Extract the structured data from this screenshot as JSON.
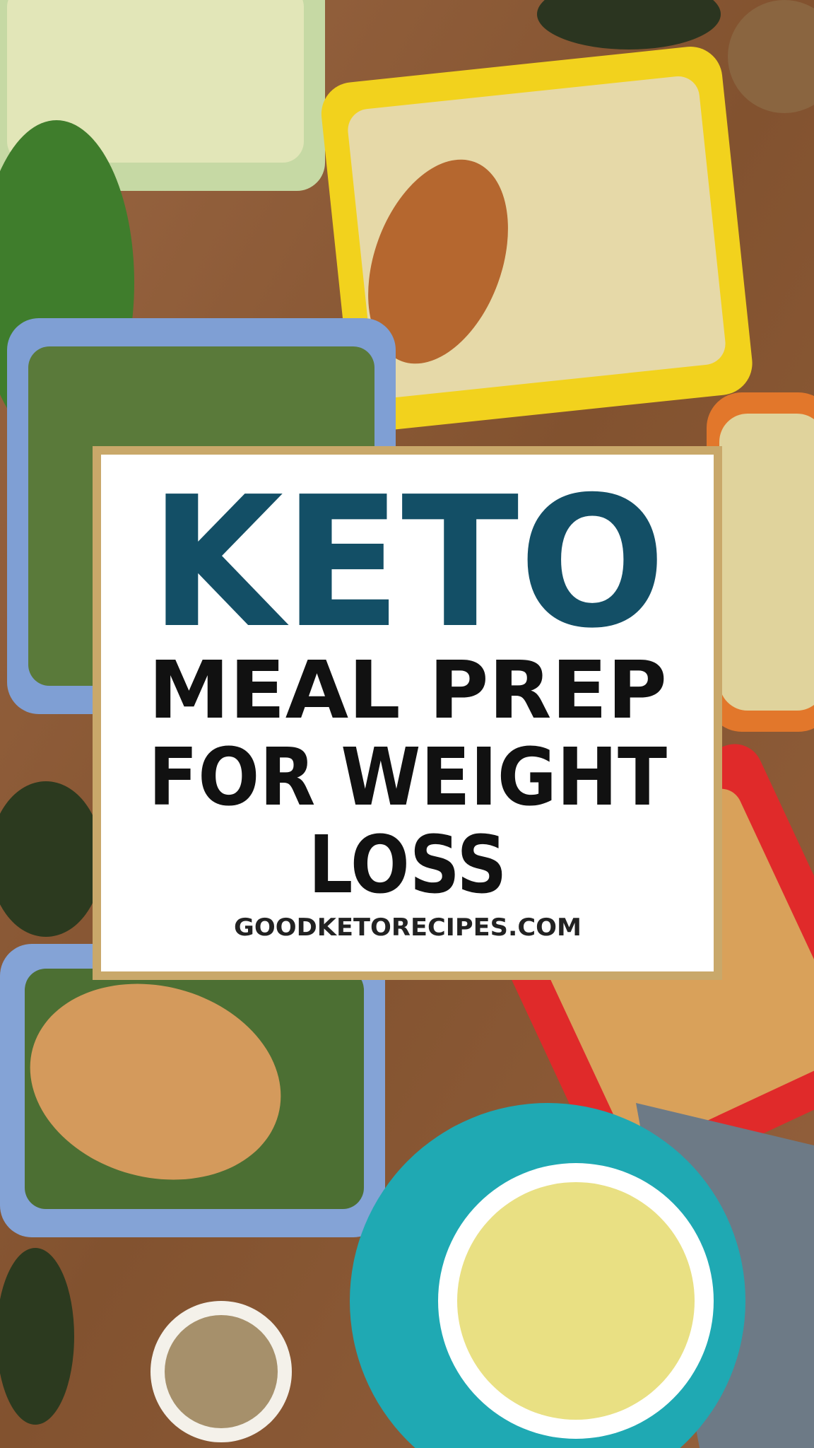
{
  "title_box": {
    "headline": "KETO",
    "lines": [
      "MEAL PREP",
      "FOR WEIGHT",
      "LOSS"
    ],
    "website": "GOODKETORECIPES.COM"
  }
}
